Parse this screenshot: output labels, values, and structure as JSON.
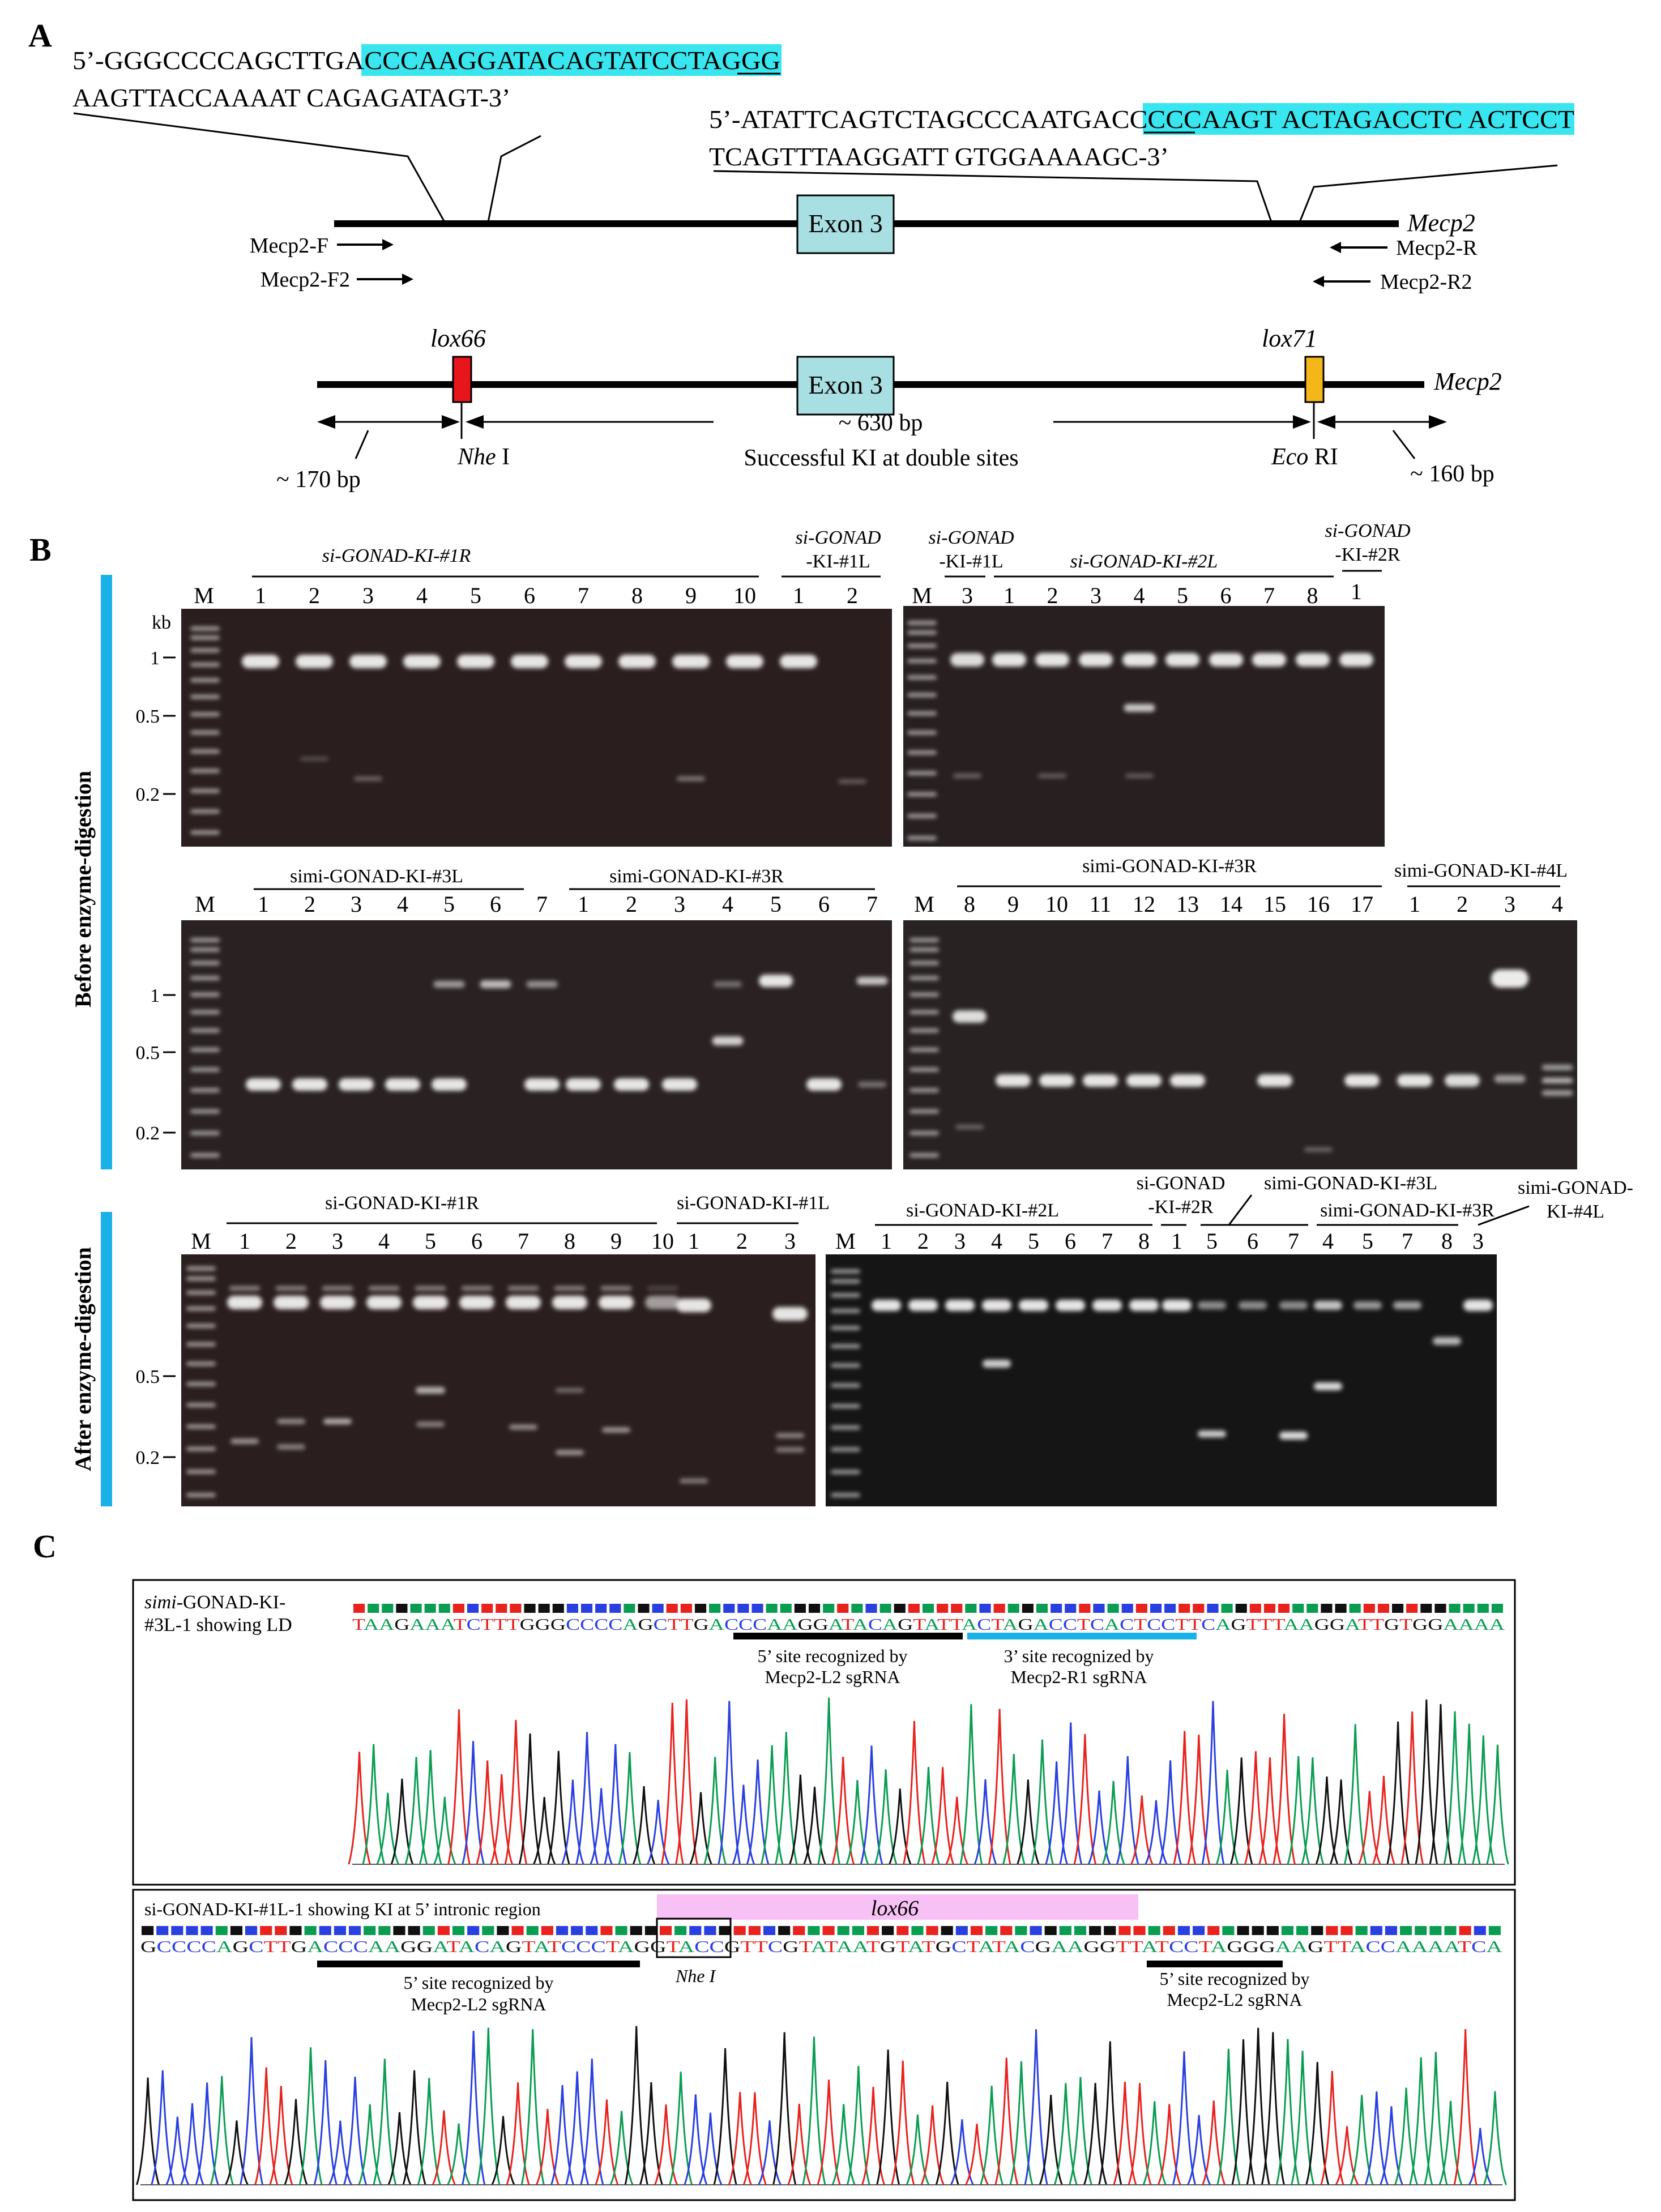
{
  "panels": {
    "a": "A",
    "b": "B",
    "c": "C"
  },
  "a": {
    "seq_left_1_pre": "5’-GGGCCCCAGCTTGA",
    "seq_left_1_hl": "CCCAAGGATACAGTATCCTAGGG",
    "seq_left_2": "AAGTTACCAAAAT CAGAGATAGT-3’",
    "seq_right_1_pre": "5’-ATATTCAGTCTAGCCCAATGACC",
    "seq_right_1_hl": "CCCAAGT ACTAGACCTC ACTCCT",
    "seq_right_2": "TCAGTTTAAGGATT GTGGAAAAGC-3’",
    "exon": "Exon 3",
    "gene": "Mecp2",
    "primer_f": "Mecp2-F",
    "primer_f2": "Mecp2-F2",
    "primer_r": "Mecp2-R",
    "primer_r2": "Mecp2-R2",
    "lox66": "lox66",
    "lox71": "lox71",
    "nhe_it": "Nhe",
    "nhe_rest": " I",
    "eco_it": "Eco",
    "eco_rest": " RI",
    "bp_170": "~ 170 bp",
    "bp_630": "~ 630 bp",
    "bp_160": "~ 160 bp",
    "ki_label": "Successful  KI at double sites"
  },
  "b": {
    "side_before": "Before enzyme-digestion",
    "side_after": "After enzyme-digestion",
    "marker": "M",
    "kb": "kb",
    "size_labels": [
      "1",
      "0.5",
      "0.2"
    ],
    "groups": {
      "g1": "si-GONAD-KI-#1R",
      "g2a": "si-GONAD",
      "g2b": "-KI-#1L",
      "g3a": "si-GONAD",
      "g3b": "-KI-#1L",
      "g4": "si-GONAD-KI-#2L",
      "g5a": "si-GONAD",
      "g5b": "-KI-#2R",
      "g6": "simi-GONAD-KI-#3L",
      "g7": "simi-GONAD-KI-#3R",
      "g8": "simi-GONAD-KI-#3R",
      "g9": "simi-GONAD-KI-#4L",
      "g10": "si-GONAD-KI-#1R",
      "g11": "si-GONAD-KI-#1L",
      "g12": "si-GONAD-KI-#2L",
      "g13a": "si-GONAD",
      "g13b": "-KI-#2R",
      "g14": "simi-GONAD-KI-#3L",
      "g15": "simi-GONAD-KI-#3R",
      "g16a": "simi-GONAD-",
      "g16b": "KI-#4L"
    },
    "lanes_g1": [
      "1",
      "2",
      "3",
      "4",
      "5",
      "6",
      "7",
      "8",
      "9",
      "10"
    ],
    "lanes_g2": [
      "1",
      "2"
    ],
    "lanes_g3": [
      "3"
    ],
    "lanes_g4": [
      "1",
      "2",
      "3",
      "4",
      "5",
      "6",
      "7",
      "8"
    ],
    "lanes_g5": [
      "1"
    ],
    "lanes_g6": [
      "1",
      "2",
      "3",
      "4",
      "5",
      "6",
      "7"
    ],
    "lanes_g7": [
      "1",
      "2",
      "3",
      "4",
      "5",
      "6",
      "7"
    ],
    "lanes_g8": [
      "8",
      "9",
      "10",
      "11",
      "12",
      "13",
      "14",
      "15",
      "16",
      "17"
    ],
    "lanes_g9": [
      "1",
      "2",
      "3",
      "4"
    ],
    "lanes_g10": [
      "1",
      "2",
      "3",
      "4",
      "5",
      "6",
      "7",
      "8",
      "9",
      "10"
    ],
    "lanes_g11": [
      "1",
      "2",
      "3"
    ],
    "lanes_g12": [
      "1",
      "2",
      "3",
      "4",
      "5",
      "6",
      "7",
      "8"
    ],
    "lanes_g13": [
      "1"
    ],
    "lanes_g14": [
      "5",
      "6",
      "7"
    ],
    "lanes_g15": [
      "4",
      "5",
      "7",
      "8"
    ],
    "lanes_g16": [
      "3"
    ]
  },
  "c": {
    "trace1_label_1": "simi-GONAD-KI-",
    "trace1_label_2": "#3L-1 showing LD",
    "trace1_seq": "TAAGAAATCTTTGGGCCCCAGCTTGACCCAAGGATACAGTATTACTAGACCTCACTCCTTCAGTTTAAGGATTGTGGAAAA",
    "site5_1": "5’ site recognized by",
    "site5_2": "Mecp2-L2 sgRNA",
    "site3_1": "3’ site recognized by",
    "site3_2": "Mecp2-R1 sgRNA",
    "trace2_label": "si-GONAD-KI-#1L-1  showing KI at 5’ intronic region",
    "lox66": "lox66",
    "trace2_seq": "GCCCCAGCTTGACCCAAGGATACAGTATCCCTAGGTACCGTTCGTATAATGTATGCTATACGAAGGTTATCCTAGGGAAGTTACCAAAATCA",
    "site5b_1": "5’ site recognized by",
    "site5b_2": "Mecp2-L2 sgRNA",
    "nhe": "Nhe I",
    "site5c_1": "5’ site recognized by",
    "site5c_2": "Mecp2-L2 sgRNA"
  }
}
